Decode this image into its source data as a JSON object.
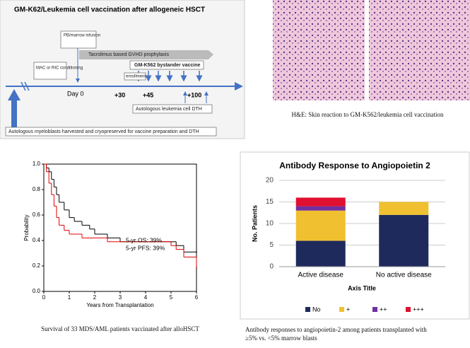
{
  "diagram": {
    "title": "GM-K62/Leukemia cell vaccination after allogeneic HSCT",
    "infusion": "PB/marrow infusion",
    "prophylaxis": "Tacrolimus based GVHD prophylaxis",
    "conditioning": "MAC or RIC conditioning",
    "day0": "Day 0",
    "enrollment": "enrollment",
    "vaccine": "GM-K562 bystander vaccine",
    "d30": "+30",
    "d45": "+45",
    "d100": "+100",
    "dth": "Autologous leukemia cell DTH",
    "harvest": "Autologous myeloblasts harvested and cryopreserved for vaccine preparation and DTH"
  },
  "images": {
    "caption": "H&E:  Skin reaction to GM-K562/leukemia  cell vaccination"
  },
  "chart_data": [
    {
      "type": "line",
      "step": true,
      "xlabel": "Years from Transplantation",
      "ylabel": "Probability",
      "caption": "Survival of 33 MDS/AML patients vaccinated after alloHSCT",
      "annotations": [
        "5-yr OS: 39%",
        "5-yr PFS: 39%"
      ],
      "x": [
        0,
        0.1,
        0.2,
        0.3,
        0.4,
        0.5,
        0.6,
        0.8,
        1.0,
        1.2,
        1.5,
        1.8,
        2.0,
        2.5,
        3,
        4,
        5,
        5.2,
        5.5,
        6
      ],
      "series": [
        {
          "color": "#000000",
          "values": [
            1.0,
            0.97,
            0.94,
            0.88,
            0.82,
            0.76,
            0.7,
            0.64,
            0.58,
            0.55,
            0.52,
            0.49,
            0.45,
            0.42,
            0.39,
            0.39,
            0.39,
            0.36,
            0.31,
            0.31
          ]
        },
        {
          "color": "#e00000",
          "values": [
            1.0,
            0.94,
            0.85,
            0.76,
            0.67,
            0.58,
            0.52,
            0.48,
            0.45,
            0.45,
            0.42,
            0.42,
            0.42,
            0.39,
            0.39,
            0.39,
            0.36,
            0.33,
            0.27,
            0.19
          ]
        }
      ],
      "xlim": [
        0,
        6
      ],
      "xticks": [
        0,
        1,
        2,
        3,
        4,
        5,
        6
      ],
      "ylim": [
        0,
        1
      ],
      "yticks": [
        {
          "value": 0,
          "label": "0.0"
        },
        0.2,
        0.4,
        0.6,
        0.8,
        {
          "value": 1,
          "label": "1.0"
        }
      ]
    },
    {
      "type": "stacked_bar",
      "title": "Antibody Response to Angiopoietin 2",
      "xlabel": "Axis Title",
      "ylabel": "No. Patients",
      "caption_lines": [
        "Antibody responses to angiopoietin-2 among patients transplanted with",
        "≥5% vs. <5% marrow blasts"
      ],
      "categories": [
        "Active disease",
        "No active disease"
      ],
      "series": [
        {
          "name": "No",
          "color": "#1f2a5c",
          "values": [
            6,
            12
          ]
        },
        {
          "name": "+",
          "color": "#f0c030",
          "values": [
            7,
            3
          ]
        },
        {
          "name": "++",
          "color": "#7030a0",
          "values": [
            1,
            0
          ]
        },
        {
          "name": "+++",
          "color": "#e01030",
          "values": [
            2,
            0
          ]
        }
      ],
      "ylim": [
        0,
        20
      ],
      "yticks": [
        0,
        5,
        10,
        15,
        20
      ],
      "grid": true,
      "legend": "bottom"
    }
  ]
}
